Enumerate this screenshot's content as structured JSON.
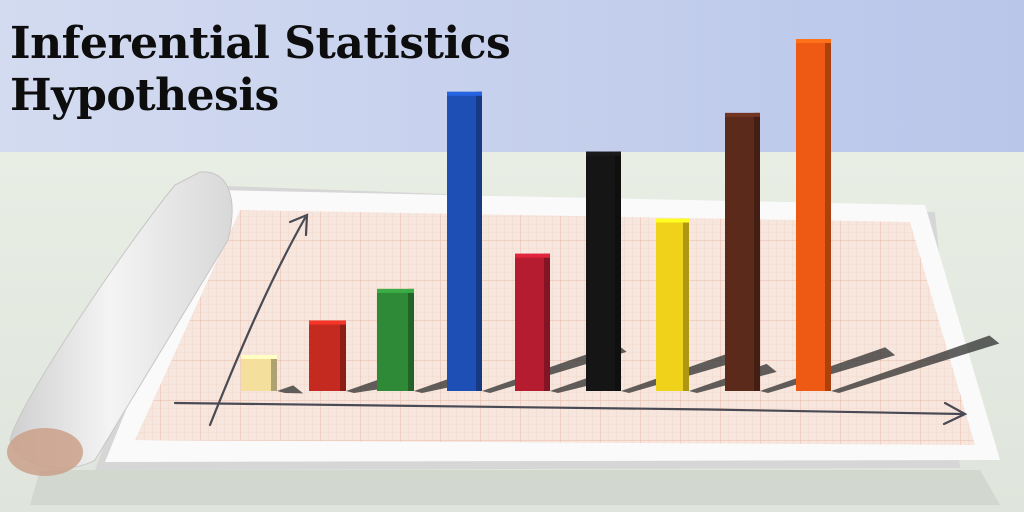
{
  "title": {
    "line1": "Inferential Statistics",
    "line2": "Hypothesis"
  },
  "colors": {
    "wall": "#c9d3ef",
    "table": "#e4eae1",
    "paper": "#f3e4db",
    "grid": "#e9b7a5"
  },
  "blocks": [
    {
      "color": "#f4df9c",
      "level": 0.1
    },
    {
      "color": "#c42a1f",
      "level": 0.2
    },
    {
      "color": "#2f8a37",
      "level": 0.29
    },
    {
      "color": "#1e4fb5",
      "level": 0.85
    },
    {
      "color": "#b51c30",
      "level": 0.39
    },
    {
      "color": "#151515",
      "level": 0.68
    },
    {
      "color": "#f1d21b",
      "level": 0.49
    },
    {
      "color": "#5b2a1a",
      "level": 0.79
    },
    {
      "color": "#ee5a14",
      "level": 1.0
    }
  ]
}
